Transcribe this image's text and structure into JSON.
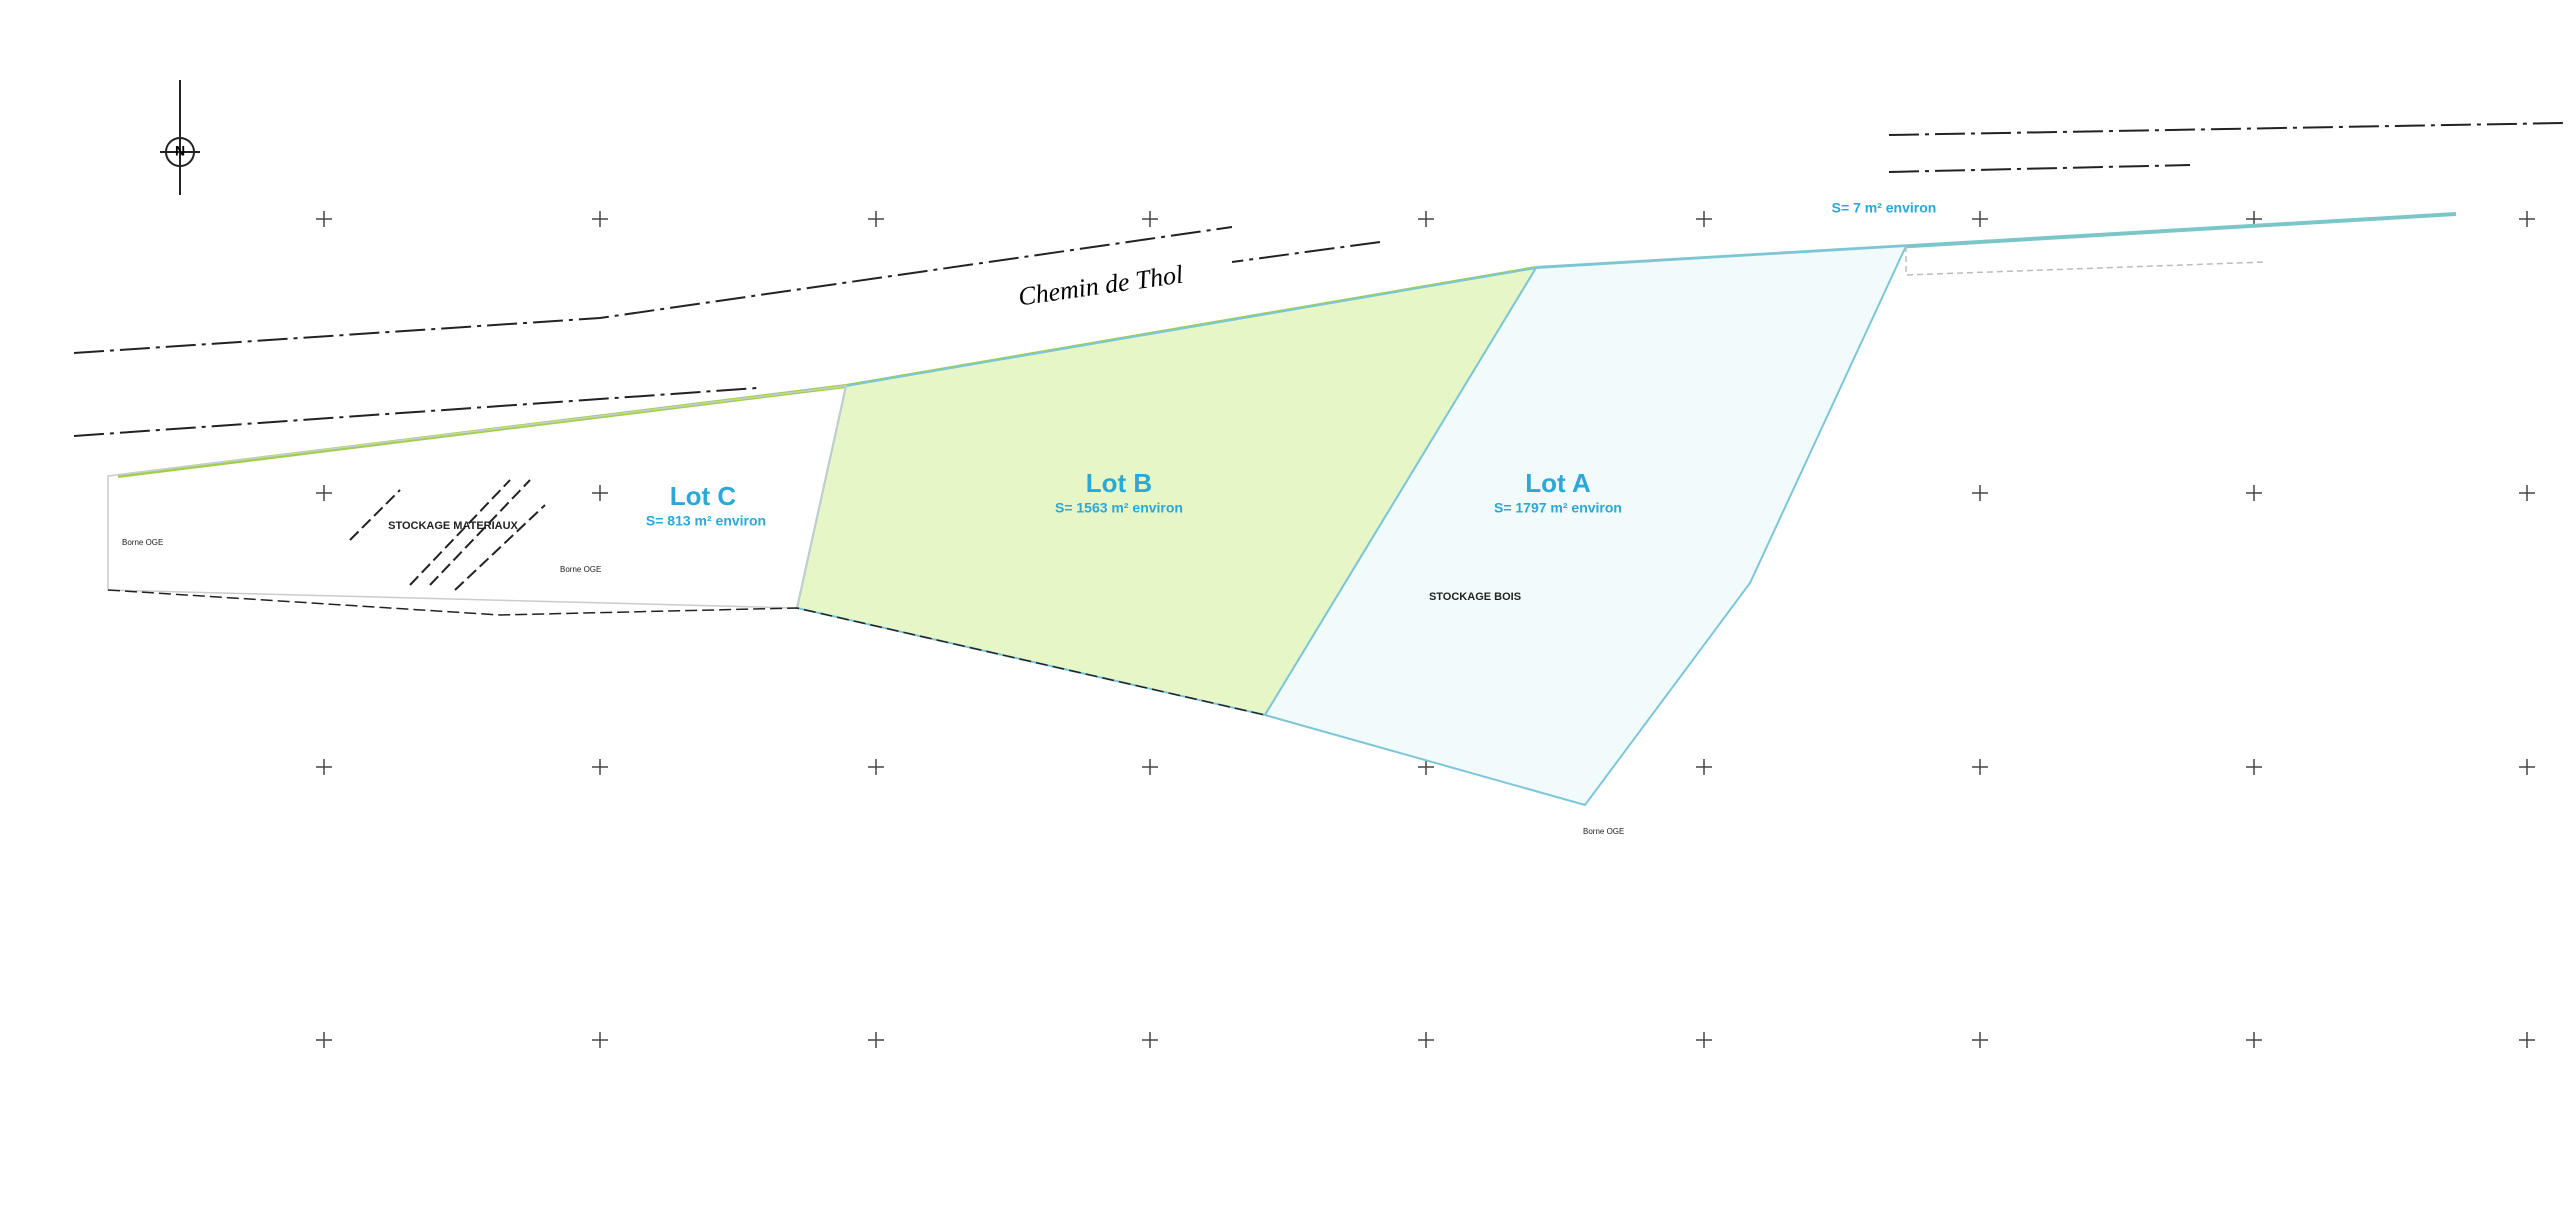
{
  "plan": {
    "road": "Chemin de Thol",
    "north": "N",
    "lots": [
      {
        "label": "Lot A",
        "area": "S= 1797 m² environ"
      },
      {
        "label": "Lot B",
        "area": "S= 1563 m² environ"
      },
      {
        "label": "Lot C",
        "area": "S= 813 m² environ"
      }
    ],
    "strip_area": "S= 7 m² environ",
    "storage": [
      "STOCKAGE MATERIAUX",
      "STOCKAGE BOIS"
    ],
    "markers": [
      "Borne OGE",
      "Borne OGE",
      "Borne OGE"
    ]
  }
}
